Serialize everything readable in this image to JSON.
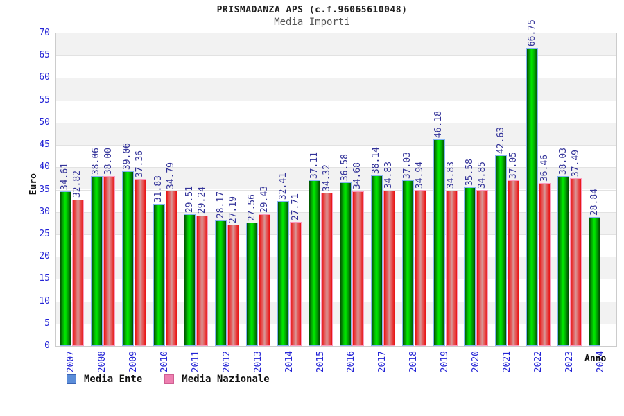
{
  "title": "PRISMADANZA APS (c.f.96065610048)",
  "subtitle": "Media Importi",
  "chart_data": {
    "type": "bar",
    "title": "PRISMADANZA APS (c.f.96065610048)",
    "subtitle": "Media Importi",
    "xlabel": "Anno",
    "ylabel": "Euro",
    "ylim": [
      0,
      70
    ],
    "ytick_step": 5,
    "ytick_labels": [
      "0",
      "5",
      "10",
      "15",
      "20",
      "25",
      "30",
      "35",
      "40",
      "45",
      "50",
      "55",
      "60",
      "65",
      "70"
    ],
    "grid": "horizontal-bands-alternating",
    "legend_position": "bottom-left",
    "categories": [
      "2007",
      "2008",
      "2009",
      "2010",
      "2011",
      "2012",
      "2013",
      "2014",
      "2015",
      "2016",
      "2017",
      "2018",
      "2019",
      "2020",
      "2021",
      "2022",
      "2023",
      "2024"
    ],
    "series": [
      {
        "name": "Media Ente",
        "color": "#00d900",
        "values": [
          34.61,
          38.06,
          39.06,
          31.83,
          29.51,
          28.17,
          27.56,
          32.41,
          37.11,
          36.58,
          38.14,
          37.03,
          46.18,
          35.58,
          42.63,
          66.75,
          38.03,
          28.84
        ],
        "value_labels": [
          "34.61",
          "38.06",
          "39.06",
          "31.83",
          "29.51",
          "28.17",
          "27.56",
          "32.41",
          "37.11",
          "36.58",
          "38.14",
          "37.03",
          "46.18",
          "35.58",
          "42.63",
          "66.75",
          "38.03",
          "28.84"
        ]
      },
      {
        "name": "Media Nazionale",
        "color": "#e45c5c",
        "values": [
          32.82,
          38.0,
          37.36,
          34.79,
          29.24,
          27.19,
          29.43,
          27.71,
          34.32,
          34.68,
          34.83,
          34.94,
          34.83,
          34.85,
          37.05,
          36.46,
          37.49,
          null
        ],
        "value_labels": [
          "32.82",
          "38.00",
          "37.36",
          "34.79",
          "29.24",
          "27.19",
          "29.43",
          "27.71",
          "34.32",
          "34.68",
          "34.83",
          "34.94",
          "34.83",
          "34.85",
          "37.05",
          "36.46",
          "37.49",
          null
        ]
      }
    ]
  },
  "legend": {
    "items": [
      {
        "label": "Media Ente",
        "swatch_fill": "#5b8dd9",
        "swatch_border": "#3a64b5"
      },
      {
        "label": "Media Nazionale",
        "swatch_fill": "#ee7fb0",
        "swatch_border": "#cf5f92"
      }
    ]
  },
  "colors": {
    "band_gray": "#f2f2f2",
    "band_white": "#ffffff",
    "grid_line": "#e2e2e2",
    "plot_border": "#cccccc",
    "axis_tick_label": "#2424d6",
    "value_label": "#333399",
    "title_text": "#222222",
    "subtitle_text": "#555555",
    "green_bar_border": "#85b4f0",
    "red_bar_border": "#fa9cc0"
  }
}
